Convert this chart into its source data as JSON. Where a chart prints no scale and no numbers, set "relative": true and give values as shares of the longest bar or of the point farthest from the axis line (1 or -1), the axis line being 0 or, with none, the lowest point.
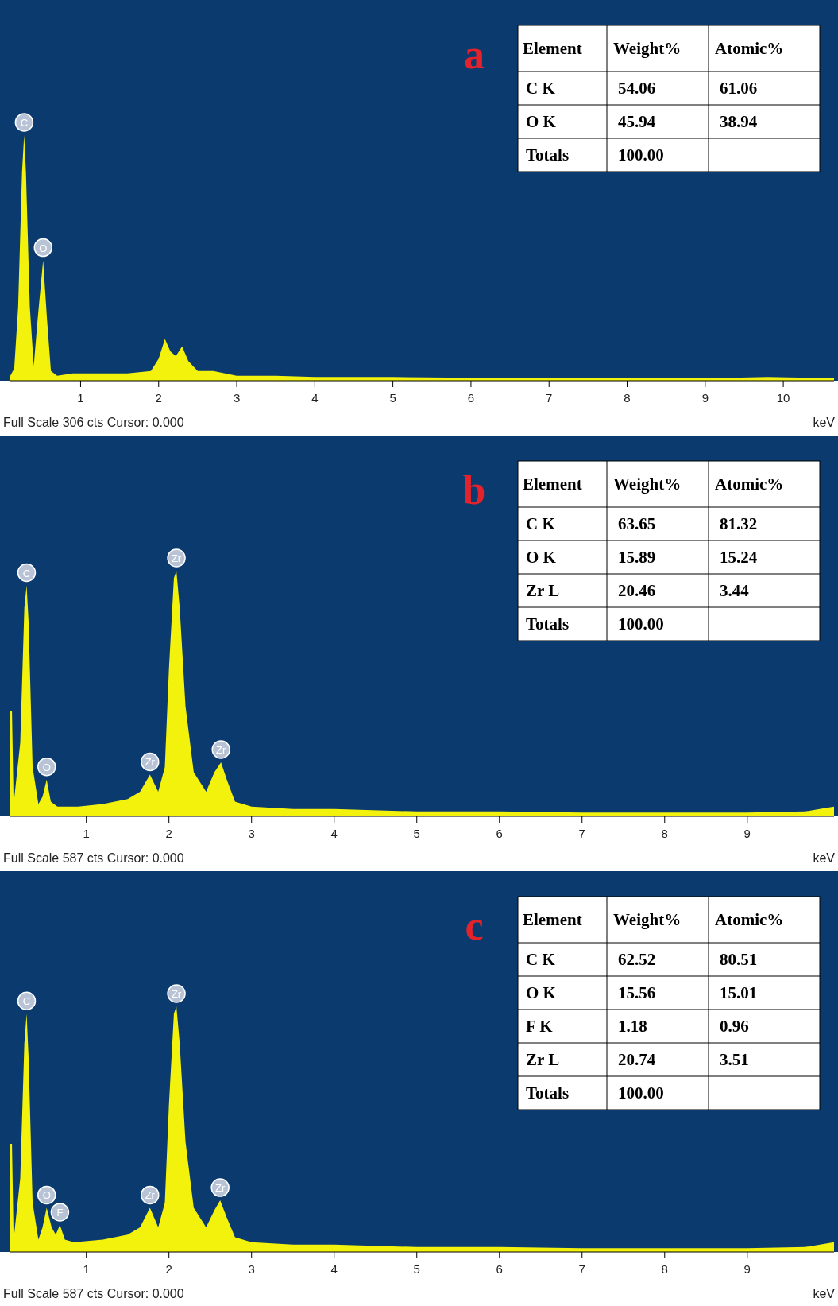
{
  "chart_data": [
    {
      "type": "area",
      "title": "a",
      "xlabel": "keV",
      "relative": true,
      "color": "#f2f20c",
      "xlim": [
        0.1,
        10.65
      ],
      "xticks": [
        1,
        2,
        3,
        4,
        5,
        6,
        7,
        8,
        9,
        10
      ],
      "x": [
        0.1,
        0.15,
        0.2,
        0.25,
        0.277,
        0.3,
        0.35,
        0.4,
        0.45,
        0.52,
        0.57,
        0.62,
        0.7,
        0.9,
        1.2,
        1.6,
        1.9,
        2.0,
        2.08,
        2.15,
        2.22,
        2.3,
        2.38,
        2.5,
        2.7,
        3.0,
        3.5,
        4,
        5,
        6,
        7,
        8,
        9,
        9.8,
        10.65
      ],
      "values": [
        0.02,
        0.05,
        0.3,
        0.85,
        1,
        0.85,
        0.3,
        0.06,
        0.25,
        0.49,
        0.25,
        0.04,
        0.02,
        0.03,
        0.03,
        0.03,
        0.04,
        0.09,
        0.17,
        0.12,
        0.1,
        0.14,
        0.08,
        0.04,
        0.04,
        0.02,
        0.02,
        0.015,
        0.015,
        0.012,
        0.01,
        0.01,
        0.01,
        0.015,
        0.01
      ],
      "annotations": [
        {
          "text": "C",
          "x": 0.277,
          "y": 1
        },
        {
          "text": "O",
          "x": 0.52,
          "y": 0.49
        },
        "Full Scale 306 cts Cursor: 0.000"
      ]
    },
    {
      "type": "other",
      "legend_title": "Element",
      "categories": [
        "C K",
        "O K",
        "Totals"
      ],
      "series": [
        {
          "name": "Weight%",
          "color": "#000000",
          "values": [
            54.06,
            45.94,
            100.0
          ],
          "value_labels": [
            "54.06",
            "45.94",
            "100.00"
          ]
        },
        {
          "name": "Atomic%",
          "color": "#000000",
          "values": [
            61.06,
            38.94,
            null
          ],
          "value_labels": [
            "61.06",
            "38.94",
            null
          ]
        }
      ]
    },
    {
      "type": "area",
      "title": "b",
      "xlabel": "keV",
      "relative": true,
      "color": "#f2f20c",
      "xlim": [
        0.08,
        10.05
      ],
      "xticks": [
        1,
        2,
        3,
        4,
        5,
        6,
        7,
        8,
        9
      ],
      "x": [
        0.08,
        0.1,
        0.12,
        0.2,
        0.25,
        0.277,
        0.3,
        0.35,
        0.42,
        0.47,
        0.52,
        0.57,
        0.65,
        0.9,
        1.2,
        1.5,
        1.65,
        1.77,
        1.87,
        1.95,
        2.0,
        2.06,
        2.09,
        2.13,
        2.2,
        2.3,
        2.45,
        2.55,
        2.63,
        2.7,
        2.8,
        3.0,
        3.5,
        4,
        5,
        6,
        7,
        8,
        9,
        9.7,
        10.05
      ],
      "values": [
        0.43,
        0.43,
        0.05,
        0.3,
        0.85,
        0.94,
        0.8,
        0.2,
        0.05,
        0.08,
        0.15,
        0.06,
        0.04,
        0.04,
        0.05,
        0.07,
        0.1,
        0.17,
        0.1,
        0.2,
        0.6,
        0.97,
        1,
        0.85,
        0.45,
        0.18,
        0.1,
        0.18,
        0.22,
        0.15,
        0.06,
        0.04,
        0.03,
        0.03,
        0.02,
        0.02,
        0.015,
        0.015,
        0.015,
        0.02,
        0.04
      ],
      "annotations": [
        {
          "text": "C",
          "x": 0.277,
          "y": 0.94
        },
        {
          "text": "O",
          "x": 0.52,
          "y": 0.15
        },
        {
          "text": "Zr",
          "x": 1.77,
          "y": 0.17
        },
        {
          "text": "Zr",
          "x": 2.09,
          "y": 1
        },
        {
          "text": "Zr",
          "x": 2.63,
          "y": 0.22
        },
        "Full Scale 587 cts Cursor: 0.000"
      ]
    },
    {
      "type": "other",
      "legend_title": "Element",
      "categories": [
        "C K",
        "O K",
        "Zr L",
        "Totals"
      ],
      "series": [
        {
          "name": "Weight%",
          "color": "#000000",
          "values": [
            63.65,
            15.89,
            20.46,
            100.0
          ],
          "value_labels": [
            "63.65",
            "15.89",
            "20.46",
            "100.00"
          ]
        },
        {
          "name": "Atomic%",
          "color": "#000000",
          "values": [
            81.32,
            15.24,
            3.44,
            null
          ],
          "value_labels": [
            "81.32",
            "15.24",
            "3.44",
            null
          ]
        }
      ]
    },
    {
      "type": "area",
      "title": "c",
      "xlabel": "keV",
      "relative": true,
      "color": "#f2f20c",
      "xlim": [
        0.08,
        10.05
      ],
      "xticks": [
        1,
        2,
        3,
        4,
        5,
        6,
        7,
        8,
        9
      ],
      "x": [
        0.08,
        0.1,
        0.12,
        0.2,
        0.25,
        0.277,
        0.3,
        0.35,
        0.42,
        0.47,
        0.52,
        0.58,
        0.63,
        0.68,
        0.74,
        0.85,
        1.2,
        1.5,
        1.65,
        1.77,
        1.87,
        1.95,
        2.0,
        2.06,
        2.09,
        2.13,
        2.2,
        2.3,
        2.45,
        2.55,
        2.62,
        2.7,
        2.8,
        3.0,
        3.5,
        4,
        5,
        6,
        7,
        8,
        9,
        9.7,
        10.05
      ],
      "values": [
        0.44,
        0.44,
        0.05,
        0.3,
        0.85,
        0.97,
        0.8,
        0.2,
        0.05,
        0.1,
        0.18,
        0.1,
        0.07,
        0.11,
        0.05,
        0.04,
        0.05,
        0.07,
        0.1,
        0.18,
        0.1,
        0.2,
        0.6,
        0.97,
        1,
        0.85,
        0.45,
        0.18,
        0.1,
        0.17,
        0.21,
        0.14,
        0.06,
        0.04,
        0.03,
        0.03,
        0.02,
        0.02,
        0.015,
        0.015,
        0.015,
        0.02,
        0.04
      ],
      "annotations": [
        {
          "text": "C",
          "x": 0.277,
          "y": 0.97
        },
        {
          "text": "O",
          "x": 0.52,
          "y": 0.18
        },
        {
          "text": "F",
          "x": 0.68,
          "y": 0.11
        },
        {
          "text": "Zr",
          "x": 1.77,
          "y": 0.18
        },
        {
          "text": "Zr",
          "x": 2.09,
          "y": 1
        },
        {
          "text": "Zr",
          "x": 2.62,
          "y": 0.21
        },
        "Full Scale 587 cts Cursor: 0.000"
      ]
    },
    {
      "type": "other",
      "legend_title": "Element",
      "categories": [
        "C K",
        "O K",
        "F K",
        "Zr L",
        "Totals"
      ],
      "series": [
        {
          "name": "Weight%",
          "color": "#000000",
          "values": [
            62.52,
            15.56,
            1.18,
            20.74,
            100.0
          ],
          "value_labels": [
            "62.52",
            "15.56",
            "1.18",
            "20.74",
            "100.00"
          ]
        },
        {
          "name": "Atomic%",
          "color": "#000000",
          "values": [
            80.51,
            15.01,
            0.96,
            3.51,
            null
          ],
          "value_labels": [
            "80.51",
            "15.01",
            "0.96",
            "3.51",
            null
          ]
        }
      ]
    }
  ]
}
